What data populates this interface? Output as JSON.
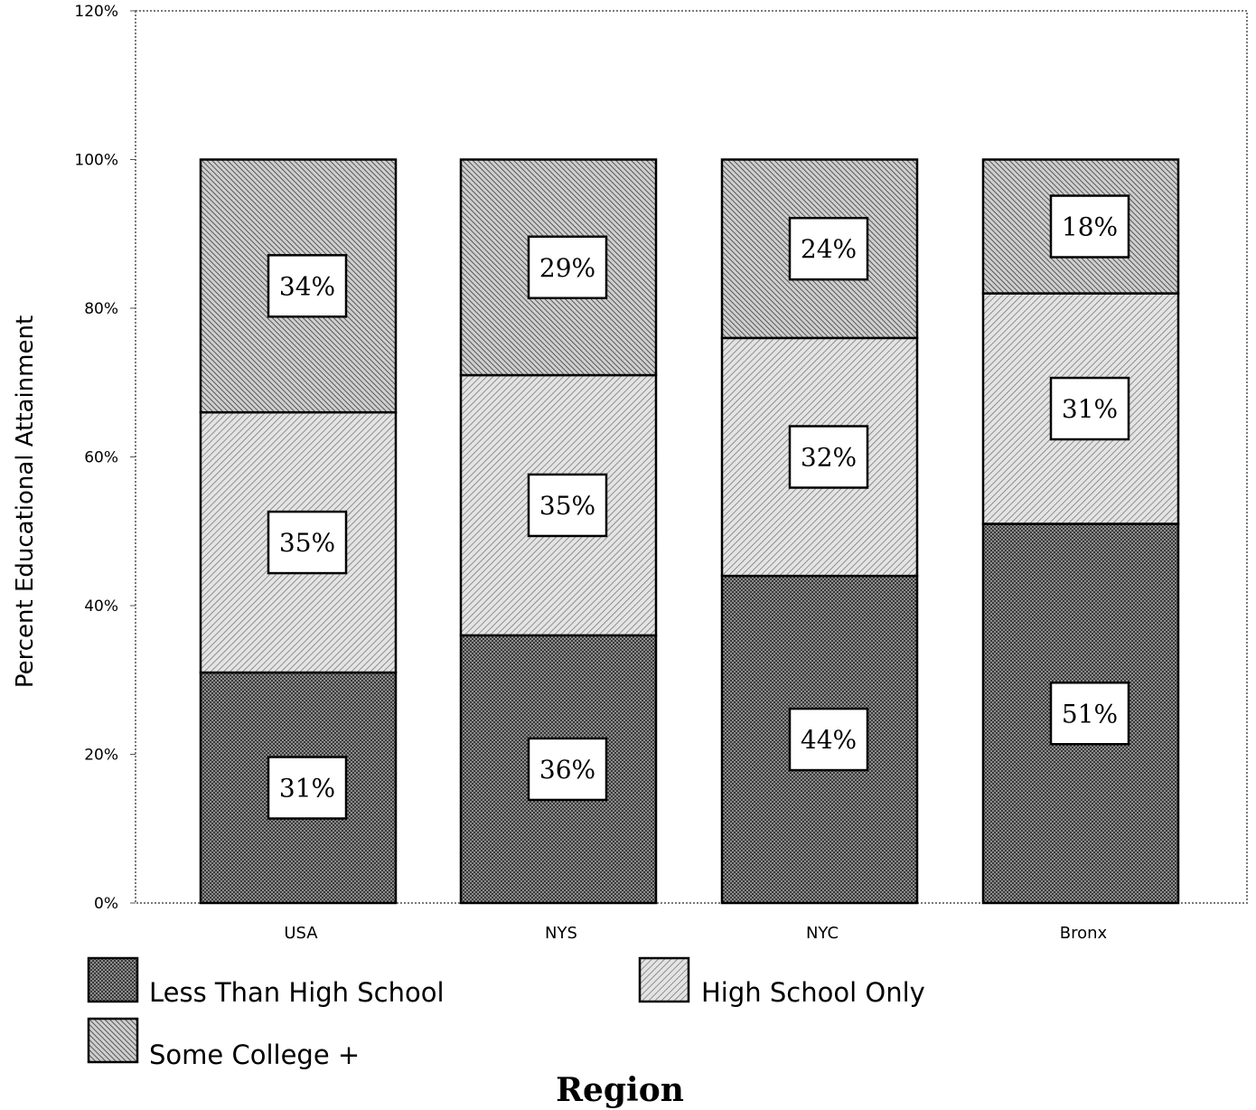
{
  "chart_data": {
    "type": "bar",
    "stacked": true,
    "categories": [
      "USA",
      "NYS",
      "NYC",
      "Bronx"
    ],
    "series": [
      {
        "name": "Less Than High School",
        "values": [
          31,
          36,
          44,
          51
        ],
        "labels": [
          "31%",
          "36%",
          "44%",
          "51%"
        ],
        "pattern": "crosshatch"
      },
      {
        "name": "High School Only",
        "values": [
          35,
          35,
          32,
          31
        ],
        "labels": [
          "35%",
          "35%",
          "32%",
          "31%"
        ],
        "pattern": "diagonal-light"
      },
      {
        "name": "Some College +",
        "values": [
          34,
          29,
          24,
          18
        ],
        "labels": [
          "34%",
          "29%",
          "24%",
          "18%"
        ],
        "pattern": "diagonal-dense"
      }
    ],
    "xlabel": "Region",
    "ylabel": "Percent Educational Attainment",
    "ylim": [
      0,
      120
    ],
    "yticks": [
      0,
      20,
      40,
      60,
      80,
      100,
      120
    ],
    "ytick_labels": [
      "0%",
      "20%",
      "40%",
      "60%",
      "80%",
      "100%",
      "120%"
    ],
    "grid": false,
    "legend_position": "bottom-left",
    "colors": {
      "ink": "#000000",
      "background": "#ffffff"
    }
  }
}
